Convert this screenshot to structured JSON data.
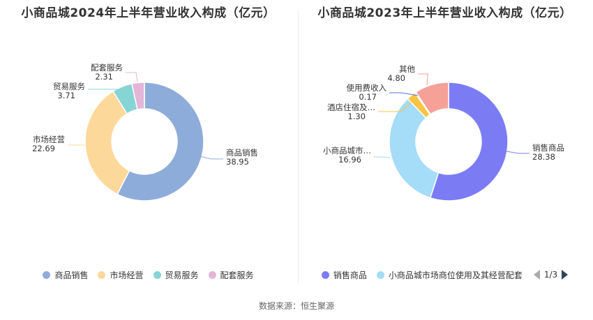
{
  "source": {
    "label": "数据来源：",
    "value": "恒生聚源"
  },
  "chart_data": [
    {
      "type": "pie",
      "variant": "donut",
      "title": "小商品城2024年上半年营业收入构成（亿元）",
      "slices": [
        {
          "name": "商品销售",
          "label": "商品销售",
          "value": 38.95,
          "value_text": "38.95",
          "color": "#8eacda"
        },
        {
          "name": "市场经营",
          "label": "市场经营",
          "value": 22.69,
          "value_text": "22.69",
          "color": "#fdd89b"
        },
        {
          "name": "贸易服务",
          "label": "贸易服务",
          "value": 3.71,
          "value_text": "3.71",
          "color": "#87d4d4"
        },
        {
          "name": "配套服务",
          "label": "配套服务",
          "value": 2.31,
          "value_text": "2.31",
          "color": "#e3b6d8"
        }
      ],
      "legend": {
        "placement": "bottom",
        "items": [
          "商品销售",
          "市场经营",
          "贸易服务",
          "配套服务"
        ]
      }
    },
    {
      "type": "pie",
      "variant": "donut",
      "title": "小商品城2023年上半年营业收入构成（亿元）",
      "slices": [
        {
          "name": "销售商品",
          "label": "销售商品",
          "value": 28.38,
          "value_text": "28.38",
          "color": "#7b7cf3"
        },
        {
          "name": "小商品城市场商位使用及其经营配套",
          "label": "小商品城市…",
          "value": 16.96,
          "value_text": "16.96",
          "color": "#a5dcf7"
        },
        {
          "name": "酒店住宿及…",
          "label": "酒店住宿及…",
          "value": 1.3,
          "value_text": "1.30",
          "color": "#f8c443"
        },
        {
          "name": "使用费收入",
          "label": "使用费收入",
          "value": 0.17,
          "value_text": "0.17",
          "color": "#5073d8"
        },
        {
          "name": "其他",
          "label": "其他",
          "value": 4.8,
          "value_text": "4.80",
          "color": "#f6a197"
        }
      ],
      "legend": {
        "placement": "bottom",
        "items": [
          "销售商品",
          "小商品城市场商位使用及其经营配套"
        ],
        "page": "1/3"
      }
    }
  ]
}
